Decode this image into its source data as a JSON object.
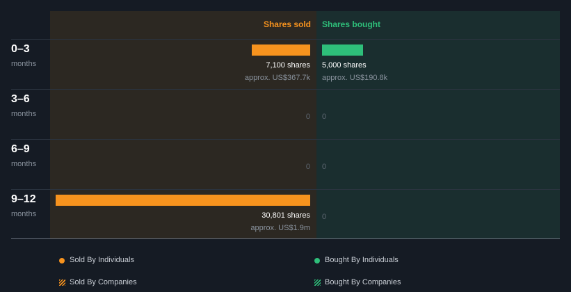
{
  "chart_data": {
    "type": "bar",
    "columns": {
      "sold": "Shares sold",
      "bought": "Shares bought"
    },
    "categories": [
      {
        "range": "0–3",
        "unit": "months"
      },
      {
        "range": "3–6",
        "unit": "months"
      },
      {
        "range": "6–9",
        "unit": "months"
      },
      {
        "range": "9–12",
        "unit": "months"
      }
    ],
    "series": [
      {
        "name": "Shares sold",
        "values": [
          7100,
          0,
          0,
          30801
        ],
        "labels": [
          "7,100 shares",
          "0",
          "0",
          "30,801 shares"
        ],
        "approx": [
          "approx. US$367.7k",
          "",
          "",
          "approx. US$1.9m"
        ]
      },
      {
        "name": "Shares bought",
        "values": [
          5000,
          0,
          0,
          0
        ],
        "labels": [
          "5,000 shares",
          "0",
          "0",
          "0"
        ],
        "approx": [
          "approx. US$190.8k",
          "",
          "",
          ""
        ]
      }
    ],
    "max_value": 30801,
    "legend": [
      {
        "label": "Sold By Individuals",
        "marker": "dot",
        "color": "#f7931e"
      },
      {
        "label": "Bought By Individuals",
        "marker": "dot",
        "color": "#2ebf7a"
      },
      {
        "label": "Sold By Companies",
        "marker": "hatch",
        "color": "#f7931e"
      },
      {
        "label": "Bought By Companies",
        "marker": "hatch",
        "color": "#2ebf7a"
      }
    ],
    "legend_position": "bottom"
  },
  "colors": {
    "sold": "#f7931e",
    "bought": "#2ebf7a"
  }
}
